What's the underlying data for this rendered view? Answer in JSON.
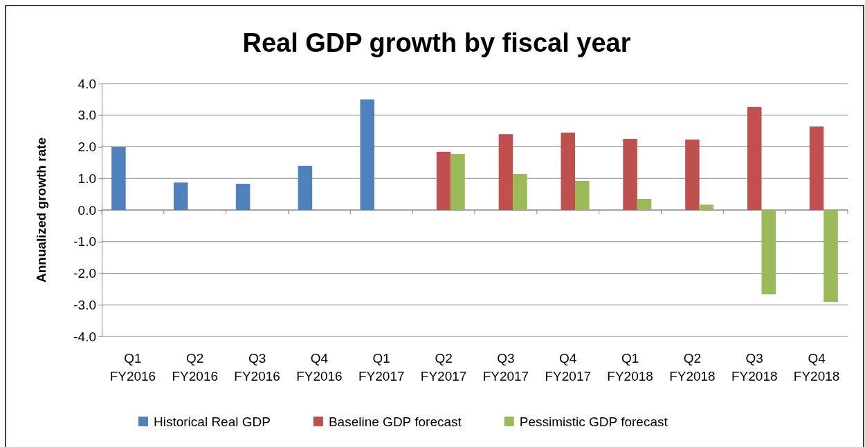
{
  "chart_data": {
    "type": "bar",
    "title": "Real GDP growth by fiscal year",
    "ylabel": "Annualized growth rate",
    "categories": [
      "Q1 FY2016",
      "Q2 FY2016",
      "Q3 FY2016",
      "Q4 FY2016",
      "Q1 FY2017",
      "Q2 FY2017",
      "Q3 FY2017",
      "Q4 FY2017",
      "Q1 FY2018",
      "Q2 FY2018",
      "Q3 FY2018",
      "Q4 FY2018"
    ],
    "series": [
      {
        "name": "Historical Real GDP",
        "color": "#4f81bd",
        "values": [
          2.0,
          0.87,
          0.83,
          1.4,
          3.5,
          null,
          null,
          null,
          null,
          null,
          null,
          null
        ]
      },
      {
        "name": "Baseline GDP forecast",
        "color": "#c0504d",
        "values": [
          null,
          null,
          null,
          null,
          null,
          1.84,
          2.4,
          2.45,
          2.25,
          2.23,
          3.26,
          2.64
        ]
      },
      {
        "name": "Pessimistic GDP forecast",
        "color": "#9bbb59",
        "values": [
          null,
          null,
          null,
          null,
          null,
          1.77,
          1.14,
          0.92,
          0.35,
          0.17,
          -2.67,
          -2.91
        ]
      }
    ],
    "ylim": [
      -4,
      4
    ],
    "yticks": [
      {
        "value": -4,
        "label": "-4.0"
      },
      {
        "value": -3,
        "label": "-3.0"
      },
      {
        "value": -2,
        "label": "-2.0"
      },
      {
        "value": -1,
        "label": "-1.0"
      },
      {
        "value": 0,
        "label": "0.0"
      },
      {
        "value": 1,
        "label": "1.0"
      },
      {
        "value": 2,
        "label": "2.0"
      },
      {
        "value": 3,
        "label": "3.0"
      },
      {
        "value": 4,
        "label": "4.0"
      }
    ],
    "grid": "y",
    "legend": "bottom"
  }
}
